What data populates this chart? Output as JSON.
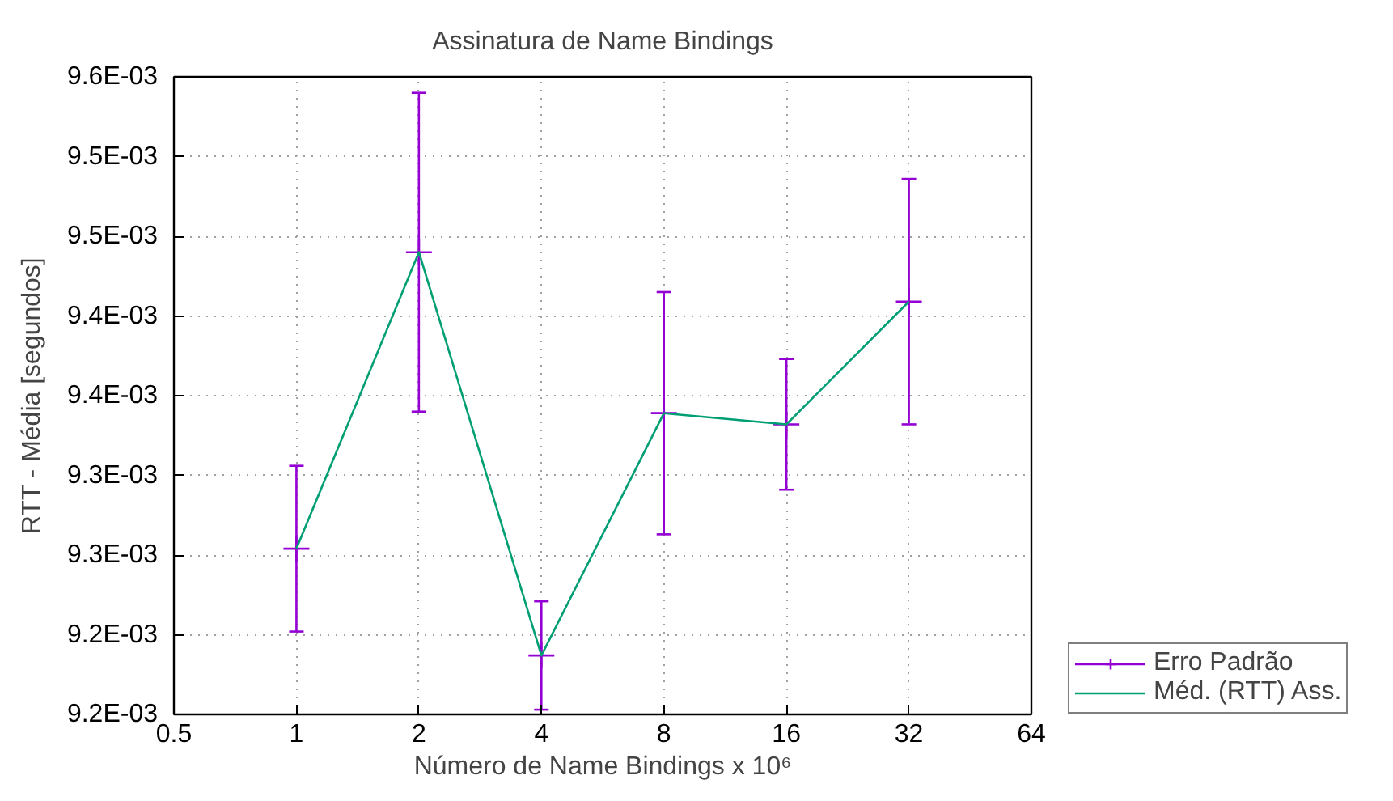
{
  "chart_data": {
    "type": "line",
    "title": "Assinatura de Name Bindings",
    "xlabel": "Número de Name Bindings x 10⁶",
    "ylabel": "RTT - Média [segundos]",
    "x": [
      1,
      2,
      4,
      8,
      16,
      32
    ],
    "series": [
      {
        "name": "Erro Padrão",
        "type": "scatter",
        "marker": "cross",
        "color": "#9400d3",
        "values": [
          0.009304,
          0.00949,
          0.009237,
          0.009389,
          0.009382,
          0.009459
        ],
        "errors": [
          5.2e-05,
          0.0001,
          3.4e-05,
          7.6e-05,
          4.1e-05,
          7.7e-05
        ]
      },
      {
        "name": "Méd. (RTT) Ass.",
        "type": "line",
        "color": "#009e73",
        "values": [
          0.009304,
          0.00949,
          0.009237,
          0.009389,
          0.009382,
          0.009459
        ]
      }
    ],
    "log": "x",
    "xlim": [
      0.5,
      64
    ],
    "xticks": [
      0.5,
      1,
      2,
      4,
      8,
      16,
      32,
      64
    ],
    "ylim": [
      0.0092,
      0.0096
    ],
    "yticks": [
      {
        "value": 0.0092,
        "label": "9.2E-03"
      },
      {
        "value": 0.00925,
        "label": "9.2E-03"
      },
      {
        "value": 0.0093,
        "label": "9.3E-03"
      },
      {
        "value": 0.00935,
        "label": "9.3E-03"
      },
      {
        "value": 0.0094,
        "label": "9.4E-03"
      },
      {
        "value": 0.00945,
        "label": "9.4E-03"
      },
      {
        "value": 0.0095,
        "label": "9.5E-03"
      },
      {
        "value": 0.00955,
        "label": "9.5E-03"
      },
      {
        "value": 0.0096,
        "label": "9.6E-03"
      }
    ],
    "grid": true,
    "legend": "bottom right"
  }
}
